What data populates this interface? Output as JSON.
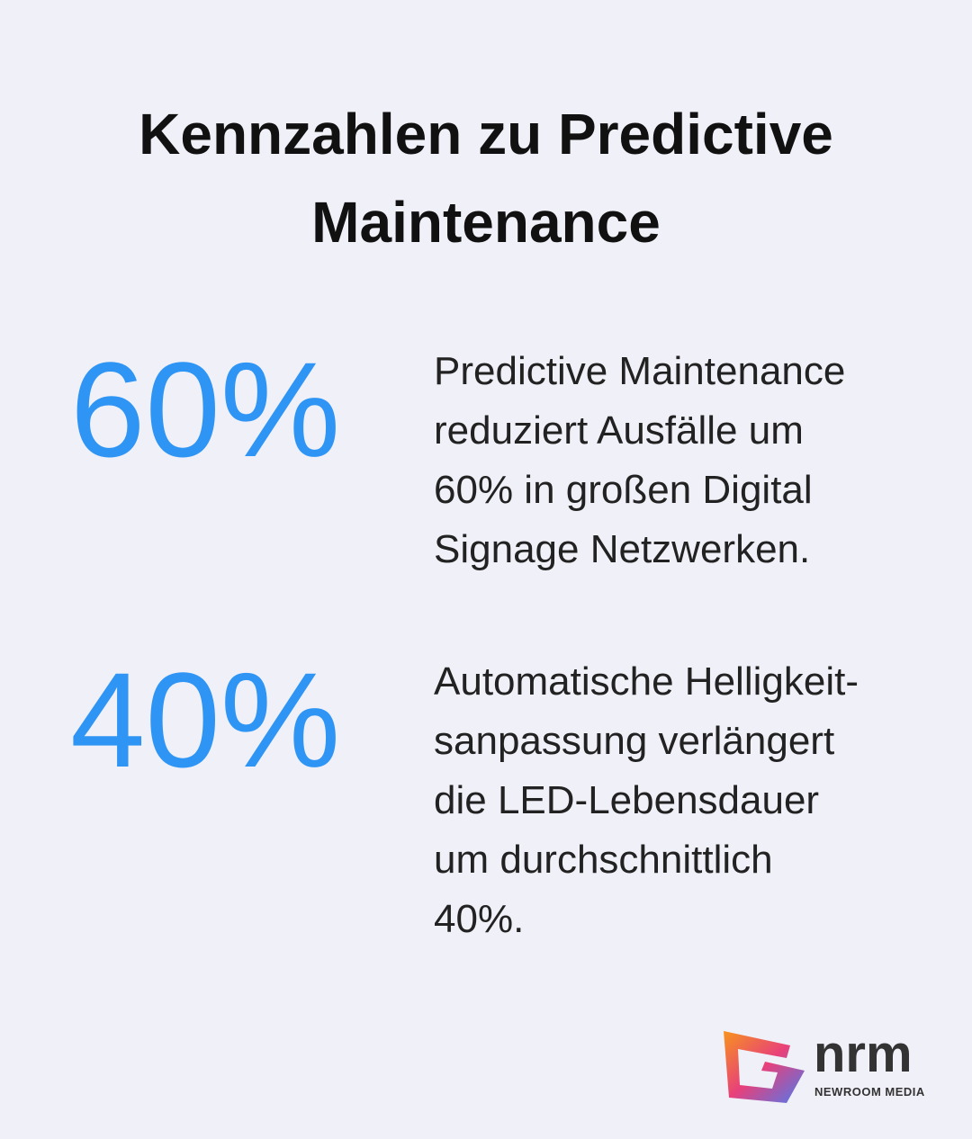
{
  "title": [
    "Kennzahlen zu Predictive",
    "Maintenance"
  ],
  "stats": [
    {
      "figure": "60%",
      "lines": [
        "Predictive Maintenance",
        "reduziert Ausfälle um",
        "60% in großen Digital",
        "Signage Netzwerken."
      ]
    },
    {
      "figure": "40%",
      "lines": [
        "Automatische Helligkeit-",
        "sanpassung verlängert",
        "die LED-Lebensdauer",
        "um durchschnittlich",
        "40%."
      ]
    }
  ],
  "logo": {
    "name": "nrm",
    "subtitle": "NEWROOM MEDIA"
  }
}
